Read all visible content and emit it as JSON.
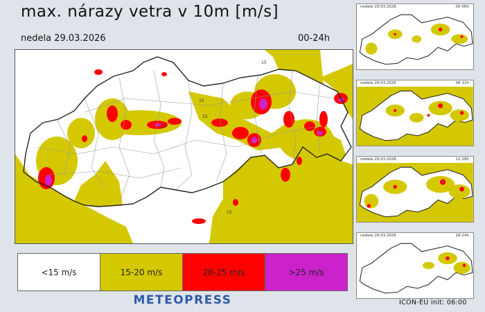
{
  "title": "max. nárazy vetra v 10m [m/s]",
  "date_label": "nedela 29.03.2026",
  "time_range": "00-24h",
  "map_labels": [
    "15",
    "15",
    "15",
    "15",
    "15"
  ],
  "legend": [
    {
      "label": "<15 m/s",
      "color": "#ffffff"
    },
    {
      "label": "15-20 m/s",
      "color": "#d4c800"
    },
    {
      "label": "20-25 m/s",
      "color": "#ff0000"
    },
    {
      "label": ">25 m/s",
      "color": "#cc22cc"
    }
  ],
  "brand": "METEOPRESS",
  "thumbnails": [
    {
      "date": "nedela 29.03.2026",
      "time": "00-06h"
    },
    {
      "date": "nedela 29.03.2026",
      "time": "06-12h"
    },
    {
      "date": "nedela 29.03.2026",
      "time": "12-18h"
    },
    {
      "date": "nedela 29.03.2026",
      "time": "18-24h"
    }
  ],
  "model_info": "ICON-EU  init:  06:00",
  "colors": {
    "yellow": "#d4c800",
    "red": "#ff0000",
    "magenta": "#cc22cc",
    "border": "#222222",
    "districts": "#9a9a9a"
  }
}
